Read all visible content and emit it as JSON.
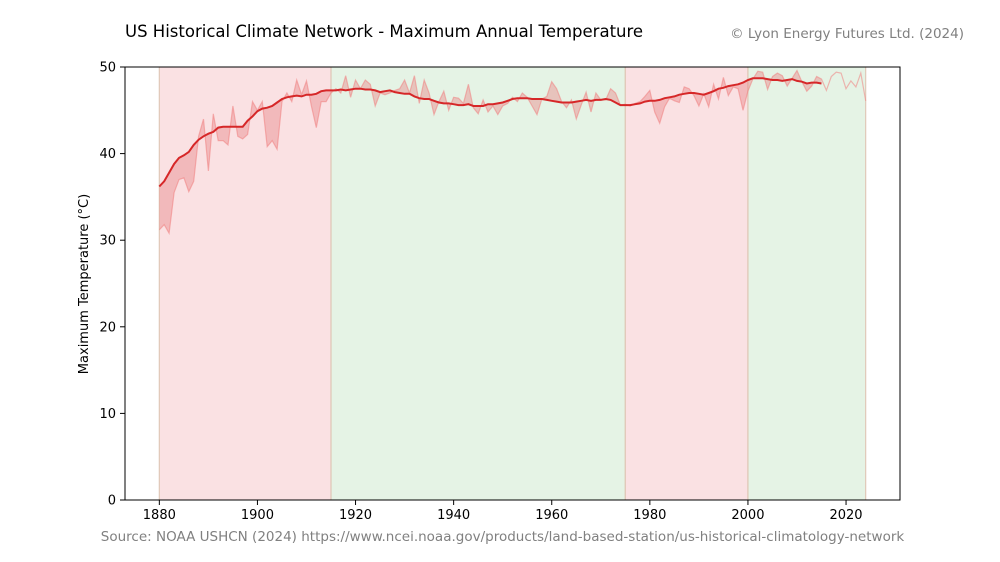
{
  "header": {
    "title": "US Historical Climate Network - Maximum Annual Temperature",
    "copyright": "© Lyon Energy Futures Ltd. (2024)"
  },
  "footer": {
    "source": "Source: NOAA USHCN (2024) https://www.ncei.noaa.gov/products/land-based-station/us-historical-climatology-network"
  },
  "colors": {
    "moving_average": "#d62728",
    "annual_line": "#f08080",
    "fill_between": "#e88a8a",
    "red_band": "#f8d7d9",
    "green_band": "#dcefdc",
    "band_edge": "#e0c8b8"
  },
  "chart_data": {
    "type": "line",
    "title": "US Historical Climate Network - Maximum Annual Temperature",
    "xlabel": "",
    "ylabel": "Maximum Temperature (°C)",
    "xlim": [
      1873,
      2031
    ],
    "ylim": [
      0,
      50
    ],
    "x_ticks": [
      1880,
      1900,
      1920,
      1940,
      1960,
      1980,
      2000,
      2020
    ],
    "y_ticks": [
      0,
      10,
      20,
      30,
      40,
      50
    ],
    "grid": false,
    "shaded_periods": [
      {
        "start": 1880,
        "end": 1915,
        "color": "red"
      },
      {
        "start": 1915,
        "end": 1975,
        "color": "green"
      },
      {
        "start": 1975,
        "end": 2000,
        "color": "red"
      },
      {
        "start": 2000,
        "end": 2024,
        "color": "green"
      }
    ],
    "series": [
      {
        "style": "annual",
        "x": [
          1880,
          1881,
          1882,
          1883,
          1884,
          1885,
          1886,
          1887,
          1888,
          1889,
          1890,
          1891,
          1892,
          1893,
          1894,
          1895,
          1896,
          1897,
          1898,
          1899,
          1900,
          1901,
          1902,
          1903,
          1904,
          1905,
          1906,
          1907,
          1908,
          1909,
          1910,
          1911,
          1912,
          1913,
          1914,
          1915,
          1916,
          1917,
          1918,
          1919,
          1920,
          1921,
          1922,
          1923,
          1924,
          1925,
          1926,
          1927,
          1928,
          1929,
          1930,
          1931,
          1932,
          1933,
          1934,
          1935,
          1936,
          1937,
          1938,
          1939,
          1940,
          1941,
          1942,
          1943,
          1944,
          1945,
          1946,
          1947,
          1948,
          1949,
          1950,
          1951,
          1952,
          1953,
          1954,
          1955,
          1956,
          1957,
          1958,
          1959,
          1960,
          1961,
          1962,
          1963,
          1964,
          1965,
          1966,
          1967,
          1968,
          1969,
          1970,
          1971,
          1972,
          1973,
          1974,
          1975,
          1976,
          1977,
          1978,
          1979,
          1980,
          1981,
          1982,
          1983,
          1984,
          1985,
          1986,
          1987,
          1988,
          1989,
          1990,
          1991,
          1992,
          1993,
          1994,
          1995,
          1996,
          1997,
          1998,
          1999,
          2000,
          2001,
          2002,
          2003,
          2004,
          2005,
          2006,
          2007,
          2008,
          2009,
          2010,
          2011,
          2012,
          2013,
          2014,
          2015,
          2016,
          2017,
          2018,
          2019,
          2020,
          2021,
          2022,
          2023,
          2024
        ],
        "values": [
          31.2,
          31.8,
          30.8,
          35.5,
          37.0,
          37.2,
          35.6,
          36.8,
          42.0,
          44.0,
          38.0,
          44.6,
          41.5,
          41.5,
          41.0,
          45.5,
          42.0,
          41.7,
          42.2,
          46.0,
          45.0,
          46.0,
          40.8,
          41.5,
          40.5,
          46.0,
          47.0,
          46.0,
          48.5,
          46.8,
          48.4,
          45.5,
          43.0,
          46.0,
          46.0,
          47.0,
          47.5,
          47.0,
          49.0,
          46.5,
          48.5,
          47.5,
          48.5,
          48.0,
          45.5,
          47.0,
          46.8,
          47.0,
          47.3,
          47.5,
          48.5,
          47.0,
          49.0,
          45.8,
          48.5,
          47.0,
          44.5,
          46.0,
          47.2,
          45.0,
          46.5,
          46.4,
          45.8,
          48.0,
          45.3,
          44.6,
          46.2,
          44.8,
          45.5,
          44.5,
          45.5,
          45.8,
          46.5,
          46.0,
          47.0,
          46.5,
          45.5,
          44.5,
          46.3,
          46.6,
          48.3,
          47.5,
          46.0,
          45.3,
          46.2,
          44.0,
          45.6,
          47.1,
          44.8,
          47.0,
          46.2,
          46.2,
          47.5,
          47.0,
          45.6,
          45.7,
          45.5,
          45.8,
          46.0,
          46.6,
          47.3,
          44.8,
          43.5,
          45.4,
          46.4,
          46.1,
          45.9,
          47.7,
          47.5,
          46.7,
          45.5,
          46.9,
          45.4,
          48.0,
          46.3,
          48.8,
          46.7,
          47.7,
          47.5,
          45.0,
          47.2,
          48.6,
          49.5,
          49.4,
          47.4,
          48.9,
          49.3,
          49.0,
          47.8,
          48.7,
          49.6,
          48.3,
          47.2,
          47.8,
          48.9,
          48.6,
          47.3,
          48.9,
          49.4,
          49.3,
          47.5,
          48.4,
          47.7,
          49.3,
          46.1
        ]
      },
      {
        "style": "moving_average",
        "x": [
          1880,
          1881,
          1882,
          1883,
          1884,
          1885,
          1886,
          1887,
          1888,
          1889,
          1890,
          1891,
          1892,
          1893,
          1894,
          1895,
          1896,
          1897,
          1898,
          1899,
          1900,
          1901,
          1902,
          1903,
          1904,
          1905,
          1906,
          1907,
          1908,
          1909,
          1910,
          1911,
          1912,
          1913,
          1914,
          1915,
          1916,
          1917,
          1918,
          1919,
          1920,
          1921,
          1922,
          1923,
          1924,
          1925,
          1926,
          1927,
          1928,
          1929,
          1930,
          1931,
          1932,
          1933,
          1934,
          1935,
          1936,
          1937,
          1938,
          1939,
          1940,
          1941,
          1942,
          1943,
          1944,
          1945,
          1946,
          1947,
          1948,
          1949,
          1950,
          1951,
          1952,
          1953,
          1954,
          1955,
          1956,
          1957,
          1958,
          1959,
          1960,
          1961,
          1962,
          1963,
          1964,
          1965,
          1966,
          1967,
          1968,
          1969,
          1970,
          1971,
          1972,
          1973,
          1974,
          1975,
          1976,
          1977,
          1978,
          1979,
          1980,
          1981,
          1982,
          1983,
          1984,
          1985,
          1986,
          1987,
          1988,
          1989,
          1990,
          1991,
          1992,
          1993,
          1994,
          1995,
          1996,
          1997,
          1998,
          1999,
          2000,
          2001,
          2002,
          2003,
          2004,
          2005,
          2006,
          2007,
          2008,
          2009,
          2010,
          2011,
          2012,
          2013,
          2014,
          2015
        ],
        "values": [
          36.2,
          36.8,
          37.8,
          38.8,
          39.5,
          39.8,
          40.2,
          41.0,
          41.6,
          42.0,
          42.3,
          42.5,
          43.0,
          43.1,
          43.1,
          43.1,
          43.1,
          43.1,
          43.8,
          44.3,
          44.9,
          45.2,
          45.3,
          45.5,
          45.9,
          46.3,
          46.5,
          46.6,
          46.7,
          46.6,
          46.8,
          46.8,
          46.9,
          47.2,
          47.3,
          47.3,
          47.3,
          47.4,
          47.3,
          47.4,
          47.5,
          47.5,
          47.4,
          47.4,
          47.3,
          47.1,
          47.2,
          47.3,
          47.1,
          47.0,
          46.9,
          46.9,
          46.6,
          46.4,
          46.3,
          46.3,
          46.1,
          45.9,
          45.8,
          45.8,
          45.7,
          45.6,
          45.6,
          45.7,
          45.5,
          45.5,
          45.5,
          45.7,
          45.7,
          45.8,
          45.9,
          46.1,
          46.3,
          46.4,
          46.4,
          46.4,
          46.3,
          46.3,
          46.3,
          46.2,
          46.1,
          46.0,
          45.9,
          45.9,
          45.9,
          46.0,
          46.1,
          46.2,
          46.1,
          46.2,
          46.2,
          46.3,
          46.2,
          45.9,
          45.6,
          45.6,
          45.6,
          45.7,
          45.8,
          46.0,
          46.1,
          46.1,
          46.2,
          46.4,
          46.5,
          46.6,
          46.8,
          46.9,
          47.0,
          47.0,
          46.9,
          46.8,
          47.0,
          47.2,
          47.5,
          47.6,
          47.8,
          47.9,
          48.0,
          48.2,
          48.5,
          48.7,
          48.7,
          48.7,
          48.6,
          48.5,
          48.5,
          48.4,
          48.5,
          48.6,
          48.4,
          48.3,
          48.1,
          48.2,
          48.2,
          48.1
        ]
      }
    ]
  }
}
